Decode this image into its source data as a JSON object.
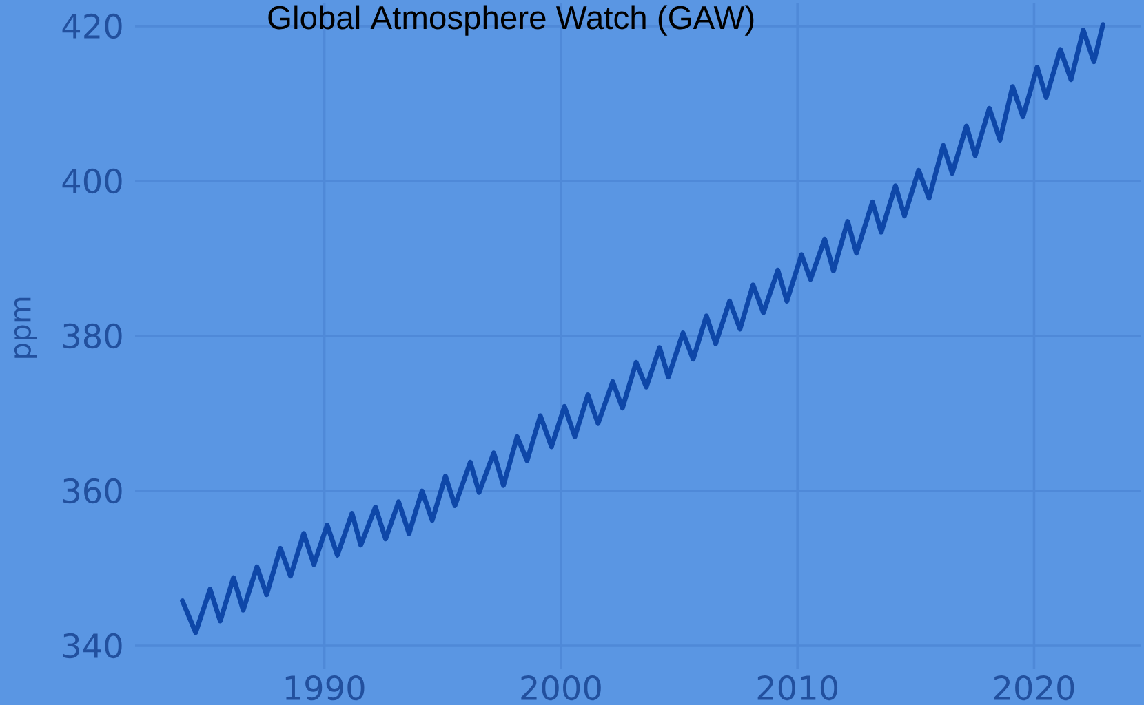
{
  "chart_data": {
    "type": "line",
    "title": "Global Atmosphere Watch (GAW)",
    "ylabel": "ppm",
    "x": [
      1984.0,
      1984.56,
      1985.17,
      1985.6,
      1986.16,
      1986.57,
      1987.15,
      1987.56,
      1988.14,
      1988.57,
      1989.13,
      1989.56,
      1990.12,
      1990.55,
      1991.17,
      1991.54,
      1992.16,
      1992.59,
      1993.14,
      1993.58,
      1994.13,
      1994.56,
      1995.12,
      1995.52,
      1996.17,
      1996.54,
      1997.16,
      1997.57,
      1998.15,
      1998.57,
      1999.13,
      1999.6,
      2000.15,
      2000.59,
      2001.14,
      2001.57,
      2002.19,
      2002.6,
      2003.18,
      2003.61,
      2004.17,
      2004.54,
      2005.16,
      2005.59,
      2006.15,
      2006.54,
      2007.13,
      2007.57,
      2008.12,
      2008.56,
      2009.17,
      2009.55,
      2010.17,
      2010.55,
      2011.15,
      2011.52,
      2012.12,
      2012.49,
      2013.17,
      2013.54,
      2014.14,
      2014.52,
      2015.12,
      2015.56,
      2016.16,
      2016.54,
      2017.14,
      2017.51,
      2018.11,
      2018.56,
      2019.09,
      2019.53,
      2020.13,
      2020.51,
      2021.11,
      2021.56,
      2022.08,
      2022.53,
      2022.91
    ],
    "series": [
      {
        "color": "#0e47a8",
        "values": [
          345.8,
          341.7,
          347.3,
          343.2,
          348.8,
          344.6,
          350.2,
          346.6,
          352.6,
          349.0,
          354.5,
          350.5,
          355.6,
          351.7,
          357.1,
          353.0,
          357.9,
          353.8,
          358.6,
          354.5,
          360.0,
          356.2,
          361.9,
          358.1,
          363.7,
          359.8,
          364.9,
          360.7,
          367.0,
          363.9,
          369.7,
          365.7,
          370.9,
          367.0,
          372.4,
          368.7,
          374.1,
          370.7,
          376.6,
          373.4,
          378.5,
          374.7,
          380.4,
          377.0,
          382.6,
          379.0,
          384.5,
          380.9,
          386.6,
          383.0,
          388.5,
          384.5,
          390.5,
          387.3,
          392.5,
          388.4,
          394.8,
          390.7,
          397.3,
          393.4,
          399.4,
          395.5,
          401.4,
          397.8,
          404.6,
          401.0,
          407.1,
          403.3,
          409.4,
          405.3,
          412.2,
          408.3,
          414.7,
          410.8,
          417.0,
          413.1,
          419.5,
          415.4,
          420.2
        ]
      }
    ],
    "xlim": [
      1982,
      2024.5
    ],
    "ylim": [
      337,
      423
    ],
    "xticks": [
      1990,
      2000,
      2010,
      2020
    ],
    "yticks": [
      340,
      360,
      380,
      400,
      420
    ],
    "grid": true,
    "line_style": "solid"
  }
}
